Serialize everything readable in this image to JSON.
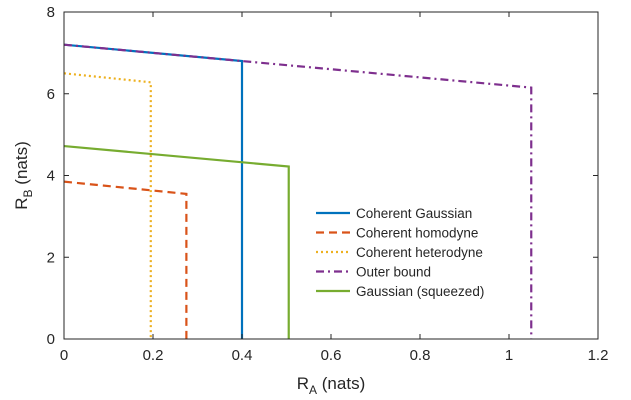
{
  "chart_data": {
    "type": "line",
    "title": "",
    "xlabel": {
      "main": "R",
      "sub": "A",
      "suffix": " (nats)"
    },
    "ylabel": {
      "main": "R",
      "sub": "B",
      "suffix": " (nats)"
    },
    "xlim": [
      0,
      1.2
    ],
    "ylim": [
      0,
      8
    ],
    "xticks": [
      0,
      0.2,
      0.4,
      0.6,
      0.8,
      1,
      1.2
    ],
    "xtick_labels": [
      "0",
      "0.2",
      "0.4",
      "0.6",
      "0.8",
      "1",
      "1.2"
    ],
    "yticks": [
      0,
      2,
      4,
      6,
      8
    ],
    "ytick_labels": [
      "0",
      "2",
      "4",
      "6",
      "8"
    ],
    "grid": false,
    "legend_position": "bottom-right",
    "series": [
      {
        "name": "Coherent Gaussian",
        "color": "#0072bd",
        "dash": "solid",
        "x": [
          0,
          0.4,
          0.4
        ],
        "y": [
          7.2,
          6.8,
          0
        ]
      },
      {
        "name": "Coherent homodyne",
        "color": "#d95319",
        "dash": "dashed",
        "x": [
          0,
          0.275,
          0.275
        ],
        "y": [
          3.85,
          3.55,
          0
        ]
      },
      {
        "name": "Coherent heterodyne",
        "color": "#edb120",
        "dash": "dotted",
        "x": [
          0,
          0.195,
          0.195
        ],
        "y": [
          6.5,
          6.28,
          0
        ]
      },
      {
        "name": "Outer bound",
        "color": "#7e2f8e",
        "dash": "dashdot",
        "x": [
          0,
          1.05,
          1.05
        ],
        "y": [
          7.2,
          6.15,
          0
        ]
      },
      {
        "name": "Gaussian (squeezed)",
        "color": "#77ac30",
        "dash": "solid",
        "x": [
          0,
          0.505,
          0.505
        ],
        "y": [
          4.72,
          4.22,
          0
        ]
      }
    ]
  }
}
